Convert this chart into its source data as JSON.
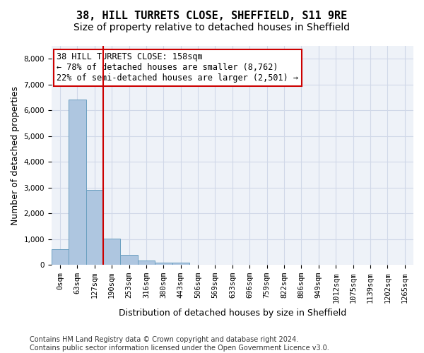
{
  "title": "38, HILL TURRETS CLOSE, SHEFFIELD, S11 9RE",
  "subtitle": "Size of property relative to detached houses in Sheffield",
  "xlabel": "Distribution of detached houses by size in Sheffield",
  "ylabel": "Number of detached properties",
  "bar_color": "#aec6e0",
  "bar_edge_color": "#6a9fc0",
  "vline_color": "#cc0000",
  "vline_x": 2.5,
  "annotation_text": "38 HILL TURRETS CLOSE: 158sqm\n← 78% of detached houses are smaller (8,762)\n22% of semi-detached houses are larger (2,501) →",
  "box_color": "#ffffff",
  "box_edge_color": "#cc0000",
  "bins": [
    "0sqm",
    "63sqm",
    "127sqm",
    "190sqm",
    "253sqm",
    "316sqm",
    "380sqm",
    "443sqm",
    "506sqm",
    "569sqm",
    "633sqm",
    "696sqm",
    "759sqm",
    "822sqm",
    "886sqm",
    "949sqm",
    "1012sqm",
    "1075sqm",
    "1139sqm",
    "1202sqm",
    "1265sqm"
  ],
  "values": [
    620,
    6430,
    2920,
    1010,
    380,
    170,
    100,
    85,
    0,
    0,
    0,
    0,
    0,
    0,
    0,
    0,
    0,
    0,
    0,
    0,
    0
  ],
  "ylim": [
    0,
    8500
  ],
  "yticks": [
    0,
    1000,
    2000,
    3000,
    4000,
    5000,
    6000,
    7000,
    8000
  ],
  "grid_color": "#d0d8e8",
  "bg_color": "#eef2f8",
  "footer": "Contains HM Land Registry data © Crown copyright and database right 2024.\nContains public sector information licensed under the Open Government Licence v3.0.",
  "title_fontsize": 11,
  "subtitle_fontsize": 10,
  "ylabel_fontsize": 9,
  "xlabel_fontsize": 9,
  "tick_fontsize": 7.5,
  "annotation_fontsize": 8.5,
  "footer_fontsize": 7
}
